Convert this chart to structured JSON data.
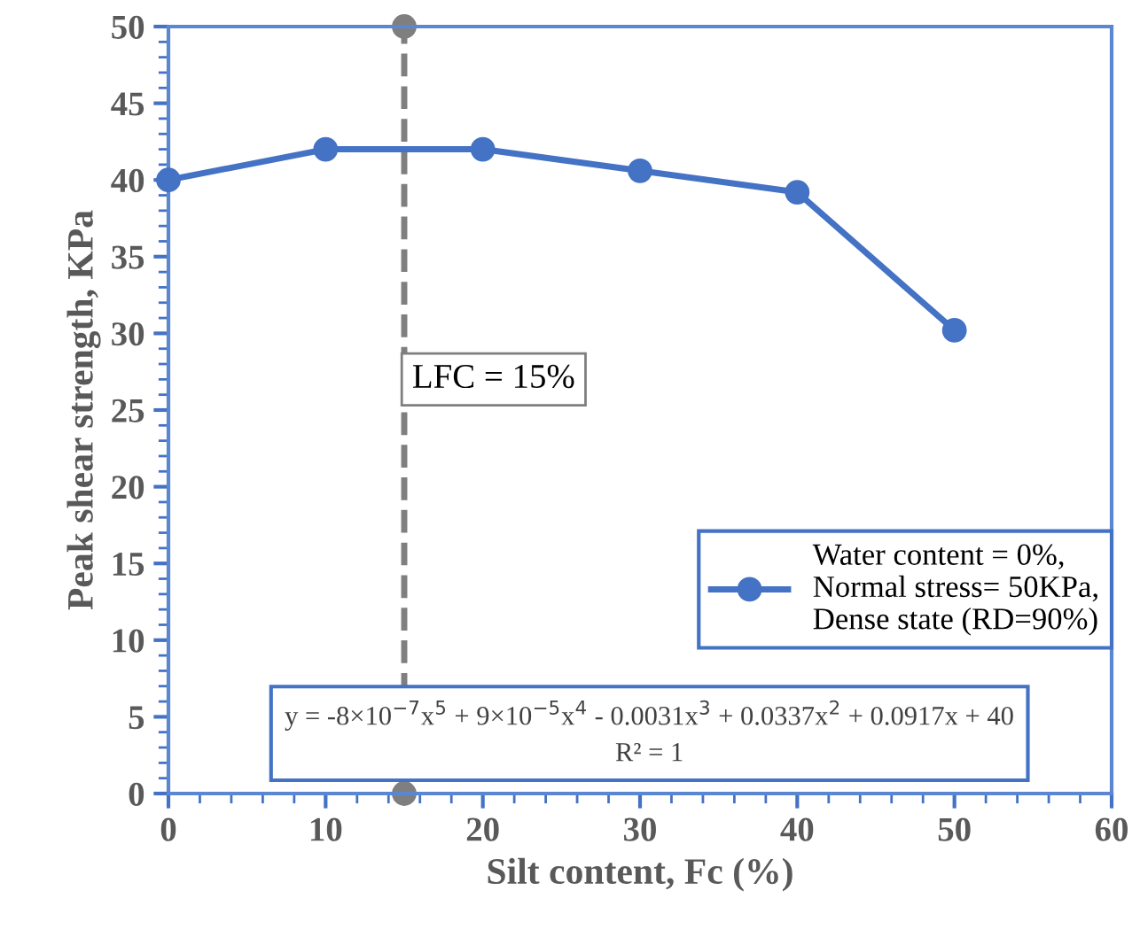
{
  "chart_data": {
    "type": "line",
    "xlabel": "Silt content, Fc (%)",
    "ylabel": "Peak shear strength, KPa",
    "x": [
      0,
      10,
      20,
      30,
      40,
      50
    ],
    "series": [
      {
        "name": "Water content = 0%,\nNormal stress= 50KPa,\nDense state (RD=90%)",
        "color": "#4472c4",
        "values": [
          40,
          42,
          42,
          40.6,
          39.2,
          30.2
        ]
      },
      {
        "x": [
          15,
          15
        ],
        "color": "#7f7f7f",
        "line_style": "dashed",
        "values": [
          0,
          50
        ]
      }
    ],
    "xlim": [
      0,
      60
    ],
    "xticks": [
      0,
      10,
      20,
      30,
      40,
      50,
      60
    ],
    "ylim": [
      0,
      50
    ],
    "yticks": [
      0,
      5,
      10,
      15,
      20,
      25,
      30,
      35,
      40,
      45,
      50
    ],
    "marker": "circle",
    "line_style": "solid",
    "grid": false,
    "legend": "right",
    "annotations": [
      {
        "text": "LFC = 15%",
        "x": 15,
        "y": 27
      },
      "y = -8×10$^{−7}$x$^{5}$ + 9×10$^{−5}$x$^{4}$ - 0.0031x$^{3}$ + 0.0337x$^{2}$ + 0.0917x + 40",
      "R² = 1"
    ]
  }
}
